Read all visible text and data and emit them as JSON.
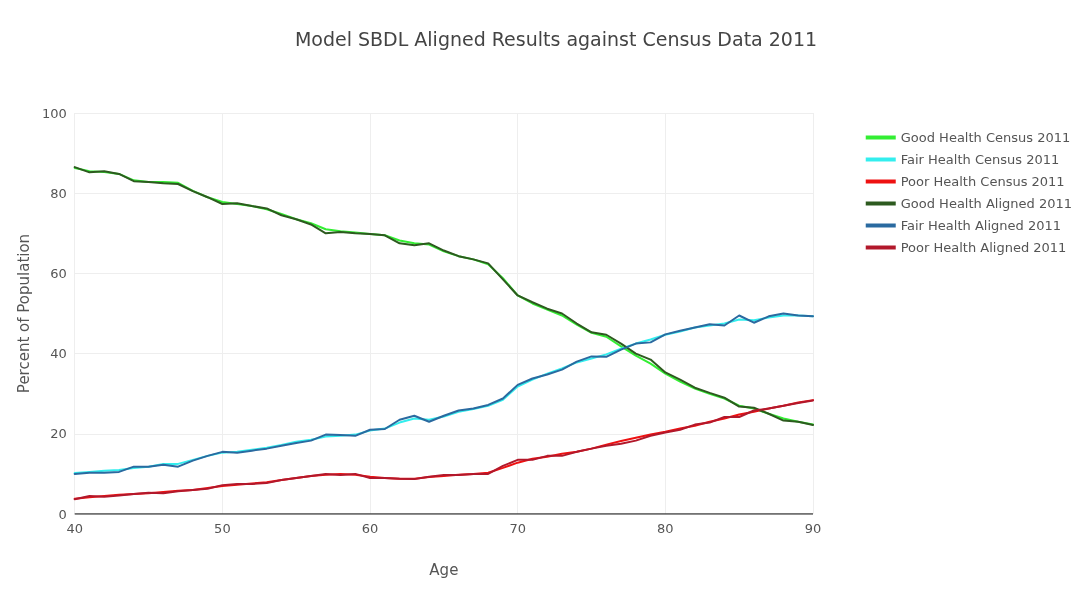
{
  "chart_data": {
    "type": "line",
    "title": "Model SBDL Aligned Results against Census Data 2011",
    "xlabel": "Age",
    "ylabel": "Percent of Population",
    "x": [
      40,
      41,
      42,
      43,
      44,
      45,
      46,
      47,
      48,
      49,
      50,
      51,
      52,
      53,
      54,
      55,
      56,
      57,
      58,
      59,
      60,
      61,
      62,
      63,
      64,
      65,
      66,
      67,
      68,
      69,
      70,
      71,
      72,
      73,
      74,
      75,
      76,
      77,
      78,
      79,
      80,
      81,
      82,
      83,
      84,
      85,
      86,
      87,
      88,
      89,
      90
    ],
    "xlim": [
      40,
      90
    ],
    "xticks": [
      40,
      50,
      60,
      70,
      80,
      90
    ],
    "ylim": [
      0,
      100
    ],
    "yticks": [
      0,
      20,
      40,
      60,
      80,
      100
    ],
    "grid": true,
    "legend": "top right",
    "marker": "none",
    "line_style": "solid",
    "series": [
      {
        "name": "Good Health Census 2011",
        "color": "#33ee33",
        "values": [
          86.3,
          85.5,
          85.3,
          84.8,
          83.2,
          82.8,
          82.8,
          82.6,
          80.6,
          79,
          77.8,
          77.3,
          76.8,
          76,
          74.8,
          73.5,
          72.5,
          71,
          70.5,
          70.2,
          69.8,
          69.5,
          68.2,
          67.5,
          67.2,
          65.5,
          64.3,
          63.5,
          62.3,
          58.8,
          54.5,
          52.5,
          51,
          49.5,
          47.2,
          45.2,
          44.2,
          41.8,
          39.5,
          37.5,
          35,
          33,
          31.3,
          30,
          28.8,
          27,
          26.3,
          25,
          23.8,
          23,
          22.3
        ]
      },
      {
        "name": "Fair Health Census 2011",
        "color": "#33eeee",
        "values": [
          10.2,
          10.5,
          10.8,
          11,
          11.5,
          11.8,
          12.5,
          12.5,
          13.5,
          14.5,
          15.3,
          15.5,
          16,
          16.5,
          17.2,
          18,
          18.5,
          19.3,
          19.5,
          19.8,
          20.8,
          21.3,
          22.8,
          23.8,
          23.5,
          24.3,
          25.5,
          26.2,
          27,
          28.5,
          31.8,
          33.5,
          35,
          36.3,
          37.8,
          38.8,
          39.8,
          41.2,
          42.5,
          43.5,
          44.7,
          45.5,
          46.5,
          47,
          47.5,
          48.5,
          48.3,
          49,
          49.5,
          49.5,
          49.3
        ]
      },
      {
        "name": "Poor Health Census 2011",
        "color": "#ee1111",
        "values": [
          3.8,
          4.2,
          4.5,
          4.8,
          5,
          5.2,
          5.5,
          5.8,
          6,
          6.5,
          7,
          7.3,
          7.6,
          7.9,
          8.5,
          9,
          9.5,
          9.8,
          10,
          9.8,
          9.3,
          9,
          8.8,
          8.8,
          9.2,
          9.5,
          9.8,
          10,
          10.3,
          11.5,
          12.8,
          13.8,
          14.3,
          15,
          15.5,
          16.3,
          17.3,
          18.2,
          19,
          19.8,
          20.5,
          21.3,
          22,
          23,
          23.8,
          24.8,
          25.5,
          26.3,
          27,
          27.8,
          28.4
        ]
      },
      {
        "name": "Good Health Aligned 2011",
        "color": "#2d5a1f",
        "values": [
          86.5,
          85.2,
          85.5,
          84.8,
          83,
          82.8,
          82.5,
          82.3,
          80.5,
          79,
          77.3,
          77.5,
          76.8,
          76.2,
          74.5,
          73.5,
          72.2,
          70,
          70.3,
          70,
          69.8,
          69.5,
          67.5,
          67,
          67.5,
          65.7,
          64.3,
          63.5,
          62.5,
          58.5,
          54.5,
          52.8,
          51.2,
          50,
          47.5,
          45.3,
          44.7,
          42.5,
          40,
          38.5,
          35.3,
          33.5,
          31.5,
          30.2,
          29,
          26.8,
          26.5,
          25,
          23.3,
          23,
          22.2
        ]
      },
      {
        "name": "Fair Health Aligned 2011",
        "color": "#2a6aa0",
        "values": [
          10,
          10.3,
          10.3,
          10.5,
          11.8,
          11.8,
          12.3,
          11.8,
          13.3,
          14.5,
          15.5,
          15.3,
          15.8,
          16.3,
          17,
          17.7,
          18.3,
          19.8,
          19.7,
          19.5,
          21,
          21.2,
          23.5,
          24.5,
          23,
          24.5,
          25.8,
          26.3,
          27.2,
          28.8,
          32.2,
          33.8,
          34.8,
          36,
          38,
          39.3,
          39.2,
          41,
          42.5,
          42.8,
          44.8,
          45.7,
          46.5,
          47.3,
          47,
          49.5,
          47.7,
          49.3,
          50,
          49.5,
          49.3
        ]
      },
      {
        "name": "Poor Health Aligned 2011",
        "color": "#b2182b",
        "values": [
          3.7,
          4.5,
          4.3,
          4.6,
          5,
          5.3,
          5.2,
          5.7,
          6,
          6.3,
          7.2,
          7.5,
          7.5,
          7.7,
          8.5,
          9,
          9.5,
          10,
          9.7,
          10,
          9,
          9,
          8.8,
          8.7,
          9.3,
          9.7,
          9.7,
          10,
          10,
          12,
          13.5,
          13.5,
          14.5,
          14.5,
          15.5,
          16.3,
          17,
          17.5,
          18.3,
          19.5,
          20.3,
          21,
          22.3,
          22.8,
          24.2,
          24.2,
          25.8,
          26.3,
          27,
          27.7,
          28.3
        ]
      }
    ]
  }
}
